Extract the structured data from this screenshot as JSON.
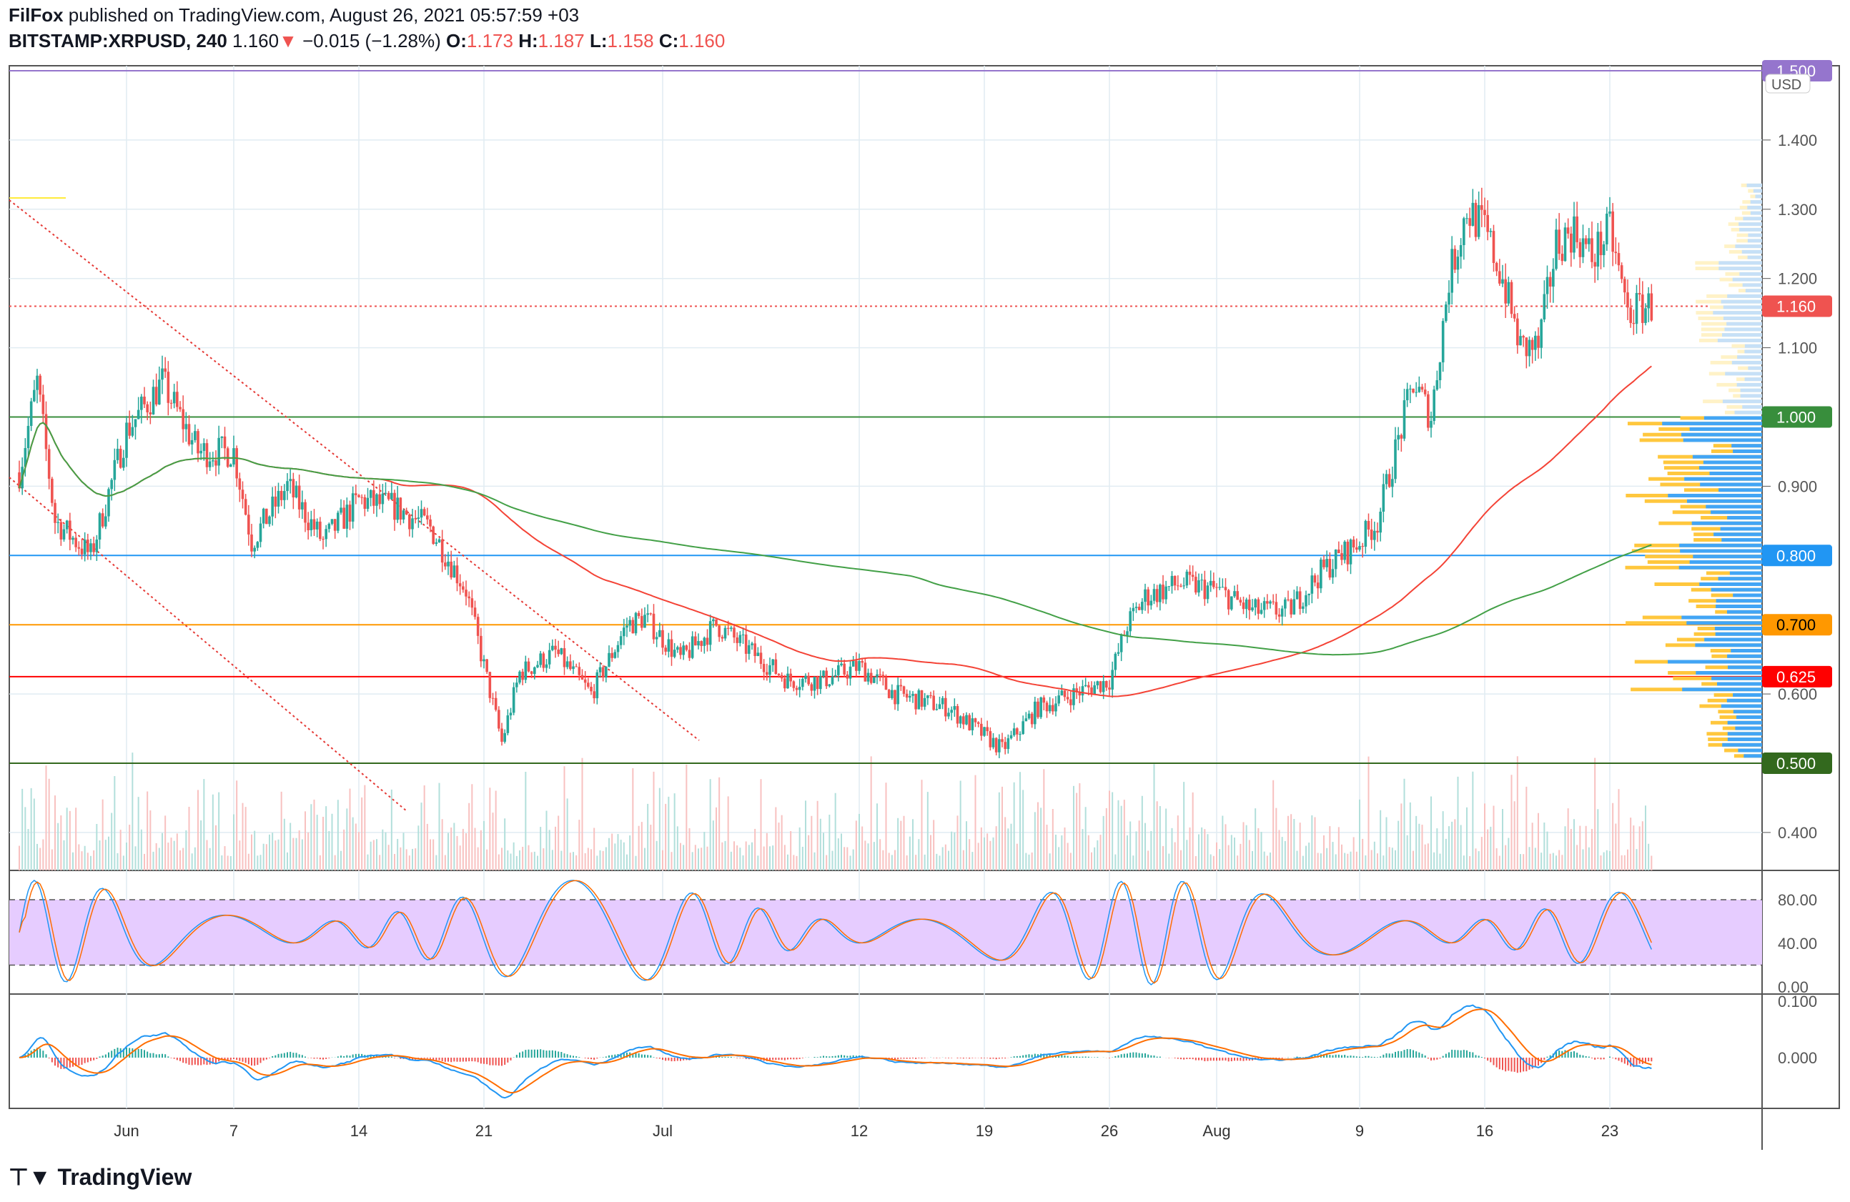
{
  "header": {
    "author": "FilFox",
    "published": "published on TradingView.com, August 26, 2021 05:57:59 +03",
    "symbol": "BITSTAMP:XRPUSD, 240",
    "last": "1.160",
    "arrow": "▼",
    "change": "−0.015 (−1.28%)",
    "o_label": "O:",
    "o": "1.173",
    "h_label": "H:",
    "h": "1.187",
    "l_label": "L:",
    "l": "1.158",
    "c_label": "C:",
    "c": "1.160"
  },
  "footer": {
    "logo": "TradingView"
  },
  "chart_data": [
    {
      "type": "candlestick",
      "title": "XRPUSD 240",
      "currency": "USD",
      "ylim": [
        0.37,
        1.52
      ],
      "yticks": [
        "1.400",
        "1.300",
        "1.200",
        "1.100",
        "0.900",
        "0.600",
        "0.400"
      ],
      "yticks_values": [
        1.4,
        1.3,
        1.2,
        1.1,
        0.9,
        0.6,
        0.4
      ],
      "xticks": [
        {
          "label": "Jun",
          "day": 0
        },
        {
          "label": "7",
          "day": 6
        },
        {
          "label": "14",
          "day": 13
        },
        {
          "label": "21",
          "day": 20
        },
        {
          "label": "Jul",
          "day": 30
        },
        {
          "label": "12",
          "day": 41
        },
        {
          "label": "19",
          "day": 48
        },
        {
          "label": "26",
          "day": 55
        },
        {
          "label": "Aug",
          "day": 61
        },
        {
          "label": "9",
          "day": 69
        },
        {
          "label": "16",
          "day": 76
        },
        {
          "label": "23",
          "day": 83
        }
      ],
      "levels": [
        {
          "value": 1.5,
          "label": "1.500",
          "color": "#9575cd"
        },
        {
          "value": 1.0,
          "label": "1.000",
          "color": "#388e3c"
        },
        {
          "value": 0.8,
          "label": "0.800",
          "color": "#2196f3"
        },
        {
          "value": 0.7,
          "label": "0.700",
          "color": "#ff9800"
        },
        {
          "value": 0.625,
          "label": "0.625",
          "color": "#ff0000"
        },
        {
          "value": 0.5,
          "label": "0.500",
          "color": "#33691e"
        }
      ],
      "last_price": {
        "value": 1.16,
        "label": "1.160",
        "color": "#ef5350"
      },
      "path_day_price": [
        [
          -6,
          0.92
        ],
        [
          -5,
          1.05
        ],
        [
          -4,
          0.85
        ],
        [
          -2,
          0.8
        ],
        [
          0,
          0.98
        ],
        [
          2,
          1.05
        ],
        [
          4,
          0.95
        ],
        [
          6,
          0.95
        ],
        [
          7,
          0.82
        ],
        [
          9,
          0.9
        ],
        [
          11,
          0.82
        ],
        [
          13,
          0.88
        ],
        [
          15,
          0.87
        ],
        [
          17,
          0.84
        ],
        [
          19,
          0.75
        ],
        [
          21,
          0.53
        ],
        [
          22,
          0.63
        ],
        [
          24,
          0.66
        ],
        [
          26,
          0.6
        ],
        [
          28,
          0.7
        ],
        [
          29,
          0.71
        ],
        [
          31,
          0.65
        ],
        [
          33,
          0.7
        ],
        [
          35,
          0.66
        ],
        [
          37,
          0.62
        ],
        [
          39,
          0.62
        ],
        [
          41,
          0.64
        ],
        [
          43,
          0.6
        ],
        [
          46,
          0.58
        ],
        [
          49,
          0.52
        ],
        [
          51,
          0.58
        ],
        [
          53,
          0.6
        ],
        [
          55,
          0.62
        ],
        [
          56,
          0.7
        ],
        [
          57,
          0.74
        ],
        [
          59,
          0.76
        ],
        [
          61,
          0.75
        ],
        [
          63,
          0.72
        ],
        [
          65,
          0.72
        ],
        [
          67,
          0.78
        ],
        [
          69,
          0.82
        ],
        [
          70,
          0.85
        ],
        [
          71,
          0.95
        ],
        [
          72,
          1.05
        ],
        [
          73,
          1.0
        ],
        [
          74,
          1.2
        ],
        [
          75,
          1.3
        ],
        [
          76,
          1.27
        ],
        [
          77,
          1.2
        ],
        [
          78,
          1.1
        ],
        [
          79,
          1.1
        ],
        [
          80,
          1.25
        ],
        [
          81,
          1.27
        ],
        [
          82,
          1.23
        ],
        [
          83,
          1.27
        ],
        [
          84,
          1.15
        ],
        [
          85,
          1.16
        ]
      ]
    },
    {
      "type": "stochastic_rsi",
      "yticks": [
        "80.00",
        "40.00",
        "0.00"
      ],
      "yticks_values": [
        80,
        40,
        0
      ],
      "band": [
        20,
        80
      ]
    },
    {
      "type": "macd",
      "yticks": [
        "0.100",
        "0.000"
      ],
      "yticks_values": [
        0.1,
        0
      ]
    }
  ]
}
